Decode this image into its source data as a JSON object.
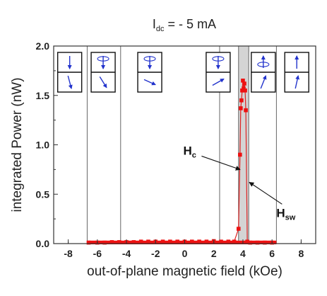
{
  "chart_data": {
    "type": "scatter",
    "title": {
      "main": "I",
      "sub": "dc",
      "rest": " = - 5 mA"
    },
    "xlabel": "out-of-plane magnetic field (kOe)",
    "ylabel": "integrated Power (nW)",
    "xlim": [
      -9,
      9
    ],
    "ylim": [
      0,
      2.0
    ],
    "xticks": [
      -8,
      -6,
      -4,
      -2,
      0,
      2,
      4,
      6,
      8
    ],
    "yticks": [
      0.0,
      0.5,
      1.0,
      1.5,
      2.0
    ],
    "xtick_labels": [
      "-8",
      "-6",
      "-4",
      "-2",
      "0",
      "2",
      "4",
      "6",
      "8"
    ],
    "ytick_labels": [
      "0.0",
      "0.5",
      "1.0",
      "1.5",
      "2.0"
    ],
    "grid": false,
    "marker_color": "#ee1111",
    "line_color": "#dd2222",
    "highlight_band": {
      "x": [
        3.7,
        4.4
      ],
      "color": "#d4d4d4"
    },
    "region_boundaries_x": [
      -6.7,
      -4.4,
      2.4,
      3.7,
      4.4,
      6.3
    ],
    "series": [
      {
        "x": [
          -6.6,
          -6.0,
          -5.5,
          -5.0,
          -4.5,
          -4.0,
          -3.5,
          -3.0,
          -2.5,
          -2.0,
          -1.5,
          -1.0,
          -0.5,
          0.0,
          0.5,
          1.0,
          1.5,
          2.0,
          2.5,
          3.0,
          3.4,
          3.7,
          3.8,
          3.85,
          3.9,
          3.95,
          4.0,
          4.05,
          4.1,
          4.15,
          4.2,
          4.3,
          4.5,
          5.0,
          5.5,
          6.0
        ],
        "y": [
          0.01,
          0.01,
          0.01,
          0.015,
          0.015,
          0.015,
          0.015,
          0.02,
          0.02,
          0.02,
          0.02,
          0.02,
          0.02,
          0.02,
          0.02,
          0.02,
          0.02,
          0.025,
          0.02,
          0.02,
          0.02,
          0.15,
          0.9,
          1.37,
          1.45,
          1.55,
          1.65,
          1.57,
          1.62,
          1.55,
          1.35,
          0.02,
          0.01,
          0.01,
          0.01,
          0.01
        ]
      }
    ],
    "annotations": [
      {
        "main": "H",
        "sub": "c",
        "x": -0.1,
        "y": 0.9,
        "arrow_to": [
          3.8,
          0.75
        ]
      },
      {
        "main": "H",
        "sub": "sw",
        "x": 6.3,
        "y": 0.27,
        "arrow_to": [
          4.45,
          0.62
        ]
      }
    ],
    "insets": [
      {
        "x_center": -7.9,
        "top": "arrow-down",
        "bottom": "arrow-down-slight-right"
      },
      {
        "x_center": -5.6,
        "top": "precessing-down",
        "bottom": "arrow-down-right"
      },
      {
        "x_center": -2.4,
        "top": "precessing-down",
        "bottom": "arrow-right-down"
      },
      {
        "x_center": 2.3,
        "top": "precessing-down",
        "bottom": "arrow-up-right"
      },
      {
        "x_center": 5.4,
        "top": "precessing-up",
        "bottom": "arrow-up-right-steep"
      },
      {
        "x_center": 7.7,
        "top": "arrow-up",
        "bottom": "arrow-up-slight-right"
      }
    ]
  }
}
